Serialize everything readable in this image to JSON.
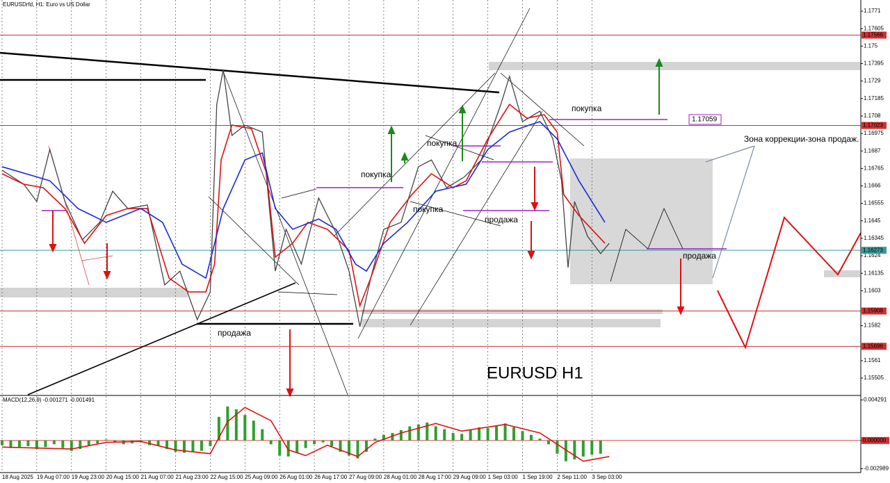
{
  "chart_data": {
    "type": "line",
    "title": "EURUSDrfd, H1:  Euro vs US Dollar",
    "watermark": "EURUSD H1",
    "xlim": [
      0,
      396
    ],
    "xticks": [
      {
        "value": 0,
        "label": "18 Aug 2025"
      },
      {
        "value": 16,
        "label": "19 Aug 07:00"
      },
      {
        "value": 32,
        "label": "19 Aug 23:00"
      },
      {
        "value": 48,
        "label": "20 Aug 15:00"
      },
      {
        "value": 64,
        "label": "21 Aug 07:00"
      },
      {
        "value": 80,
        "label": "21 Aug 23:00"
      },
      {
        "value": 96,
        "label": "22 Aug 15:00"
      },
      {
        "value": 112,
        "label": "25 Aug 09:00"
      },
      {
        "value": 128,
        "label": "26 Aug 01:00"
      },
      {
        "value": 144,
        "label": "26 Aug 17:00"
      },
      {
        "value": 160,
        "label": "27 Aug 09:00"
      },
      {
        "value": 176,
        "label": "28 Aug 01:00"
      },
      {
        "value": 192,
        "label": "28 Aug 17:00"
      },
      {
        "value": 208,
        "label": "29 Aug 09:00"
      },
      {
        "value": 224,
        "label": "1 Sep 03:00"
      },
      {
        "value": 240,
        "label": "1 Sep 19:00"
      },
      {
        "value": 256,
        "label": "2 Sep 11:00"
      },
      {
        "value": 272,
        "label": "3 Sep 03:00"
      }
    ],
    "ylim": [
      1.15405,
      1.17777
    ],
    "yticks": [
      1.1771,
      1.17605,
      1.175,
      1.17395,
      1.1729,
      1.17185,
      1.1708,
      1.16975,
      1.1687,
      1.16765,
      1.1666,
      1.16555,
      1.1645,
      1.16345,
      1.1624,
      1.16135,
      1.1603,
      1.1582,
      1.1561,
      1.15505
    ],
    "levels": [
      {
        "value": 1.17566,
        "color": "#d03030"
      },
      {
        "value": 1.17023,
        "color": "#d03030"
      },
      {
        "value": 1.16273,
        "color": "#3a9a9a"
      },
      {
        "value": 1.15908,
        "color": "#d03030"
      },
      {
        "value": 1.15696,
        "color": "#d03030"
      }
    ],
    "marked_level": 1.17059,
    "series": [
      {
        "color": "#444444",
        "width": 1.3,
        "x": [
          0,
          10,
          16,
          22,
          29,
          37,
          45,
          51,
          58,
          67,
          75,
          82,
          90,
          96,
          99,
          102,
          106,
          112,
          120,
          126,
          131,
          138,
          146,
          154,
          160,
          165,
          170,
          176,
          184,
          192,
          198,
          205,
          213,
          221,
          230,
          234,
          240,
          248,
          254,
          258,
          261,
          264,
          270,
          276,
          280
        ],
        "values": [
          1.16754,
          1.1667,
          1.16566,
          1.16879,
          1.16566,
          1.16336,
          1.16441,
          1.16628,
          1.16524,
          1.16545,
          1.16065,
          1.16148,
          1.15856,
          1.16023,
          1.1715,
          1.17359,
          1.16963,
          1.17025,
          1.16983,
          1.16148,
          1.16399,
          1.1619,
          1.16587,
          1.16378,
          1.16148,
          1.15814,
          1.16106,
          1.16399,
          1.16441,
          1.16775,
          1.16816,
          1.16649,
          1.16712,
          1.16816,
          1.1715,
          1.17318,
          1.17046,
          1.17109,
          1.16942,
          1.16691,
          1.16169,
          1.16566,
          1.16357,
          1.16253,
          1.16315
        ]
      },
      {
        "color": "#e01010",
        "width": 1.6,
        "x": [
          0,
          10,
          19,
          29,
          38,
          48,
          58,
          67,
          77,
          86,
          94,
          98,
          101,
          106,
          115,
          122,
          126,
          134,
          141,
          150,
          160,
          165,
          170,
          179,
          189,
          198,
          208,
          214,
          224,
          234,
          242,
          250,
          256,
          259,
          266,
          278
        ],
        "values": [
          1.16733,
          1.1667,
          1.16649,
          1.16524,
          1.16315,
          1.16482,
          1.16524,
          1.16524,
          1.16106,
          1.16023,
          1.16023,
          1.1619,
          1.16816,
          1.17025,
          1.17004,
          1.16733,
          1.16232,
          1.16315,
          1.16441,
          1.16399,
          1.16273,
          1.15939,
          1.16106,
          1.16441,
          1.16608,
          1.16733,
          1.16649,
          1.16691,
          1.16942,
          1.1715,
          1.17067,
          1.17088,
          1.16983,
          1.16608,
          1.16482,
          1.16315
        ]
      },
      {
        "color": "#1a2ad8",
        "width": 1.6,
        "x": [
          0,
          22,
          35,
          48,
          64,
          74,
          83,
          94,
          102,
          112,
          120,
          126,
          134,
          146,
          154,
          163,
          168,
          176,
          187,
          200,
          214,
          224,
          234,
          243,
          248,
          256,
          266,
          278
        ],
        "values": [
          1.16775,
          1.16691,
          1.16524,
          1.16441,
          1.16524,
          1.16441,
          1.1619,
          1.16106,
          1.16524,
          1.16816,
          1.16858,
          1.16524,
          1.16399,
          1.16461,
          1.16399,
          1.1619,
          1.16148,
          1.16315,
          1.16441,
          1.16628,
          1.1667,
          1.16879,
          1.16983,
          1.17025,
          1.17046,
          1.16942,
          1.16691,
          1.16441
        ]
      }
    ],
    "annotations": [
      "покупка",
      "покупка",
      "покупка",
      "покупка",
      "продажа",
      "продажа",
      "продажа",
      "Зона коррекции-зона продаж."
    ],
    "macd": {
      "label": "MACD(12,26,9) -0.001271 -0.001491",
      "ylim": [
        -0.0034,
        0.0047
      ],
      "yticks": [
        0.004291,
        {
          "value": 0,
          "label": "0.000000"
        },
        -0.002989
      ],
      "histogram_color": "#2ea02e",
      "x": [
        0,
        4,
        8,
        12,
        16,
        20,
        24,
        28,
        32,
        36,
        40,
        44,
        48,
        52,
        56,
        60,
        64,
        68,
        72,
        76,
        80,
        84,
        88,
        92,
        96,
        100,
        104,
        108,
        112,
        116,
        120,
        124,
        128,
        132,
        136,
        140,
        144,
        148,
        152,
        156,
        160,
        164,
        168,
        172,
        176,
        180,
        184,
        188,
        192,
        196,
        200,
        204,
        208,
        212,
        216,
        220,
        224,
        228,
        232,
        236,
        240,
        244,
        248,
        252,
        256,
        260,
        264,
        268,
        272,
        276
      ],
      "histogram": [
        -0.0005,
        -0.0008,
        -0.0007,
        -0.0006,
        -0.0009,
        -0.0007,
        -0.0004,
        -0.0008,
        -0.0011,
        -0.0009,
        -0.0005,
        -0.0003,
        0.0001,
        -0.0002,
        -0.0004,
        -0.0003,
        -0.0002,
        -0.0005,
        -0.0006,
        -0.0009,
        -0.0012,
        -0.0013,
        -0.0012,
        -0.0011,
        -0.0006,
        0.0025,
        0.0036,
        0.0033,
        0.0027,
        0.0021,
        0.0012,
        -0.0004,
        -0.0016,
        -0.0017,
        -0.0013,
        -0.0008,
        -0.0004,
        -0.0002,
        -0.0006,
        -0.0012,
        -0.0016,
        -0.0019,
        -0.0012,
        0.0002,
        0.0006,
        0.0008,
        0.0011,
        0.0015,
        0.0017,
        0.0019,
        0.0015,
        0.0012,
        0.0008,
        0.0007,
        0.0011,
        0.0014,
        0.0013,
        0.0015,
        0.0018,
        0.0014,
        0.001,
        0.0006,
        0.0002,
        -0.0004,
        -0.0014,
        -0.0022,
        -0.002,
        -0.0017,
        -0.0015,
        -0.0014
      ],
      "signal_color": "#e01010",
      "signal_x": [
        0,
        32,
        48,
        64,
        80,
        96,
        104,
        112,
        124,
        132,
        140,
        150,
        164,
        172,
        184,
        200,
        212,
        232,
        248,
        260,
        268,
        280
      ],
      "signal": [
        -0.0007,
        -0.0009,
        -0.0002,
        -0.0001,
        -0.001,
        -0.0014,
        0.002,
        0.0035,
        0.0021,
        -0.001,
        -0.0016,
        -0.0005,
        -0.0017,
        -0.0002,
        0.0008,
        0.0018,
        0.001,
        0.0017,
        0.0008,
        -0.001,
        -0.0022,
        -0.0017
      ]
    }
  }
}
